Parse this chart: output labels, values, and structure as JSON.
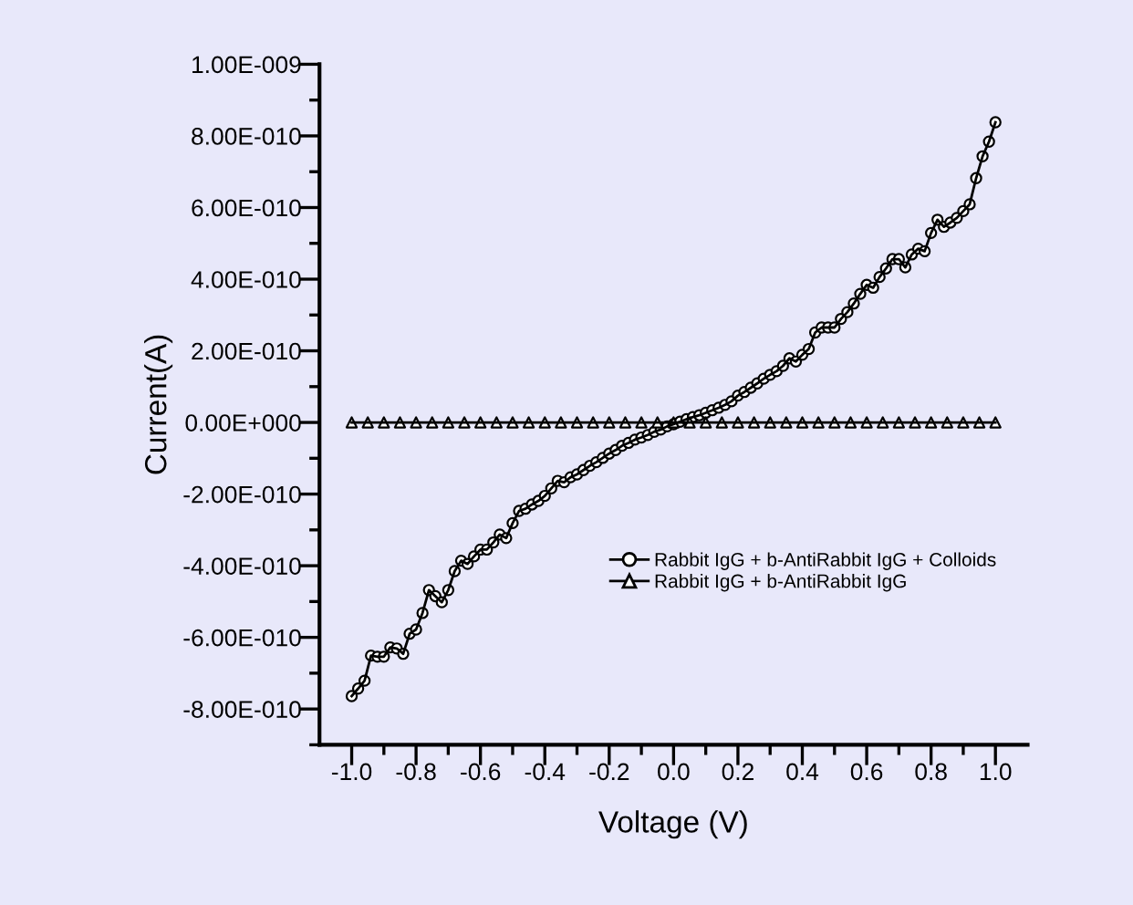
{
  "chart_data": {
    "type": "line",
    "xlabel": "Voltage (V)",
    "ylabel": "Current(A)",
    "xlim": [
      -1.1,
      1.1
    ],
    "xticks": [
      {
        "value": -1.0,
        "label": "-1.0"
      },
      {
        "value": -0.9,
        "label": null
      },
      {
        "value": -0.8,
        "label": "-0.8"
      },
      {
        "value": -0.7,
        "label": null
      },
      {
        "value": -0.6,
        "label": "-0.6"
      },
      {
        "value": -0.5,
        "label": null
      },
      {
        "value": -0.4,
        "label": "-0.4"
      },
      {
        "value": -0.3,
        "label": null
      },
      {
        "value": -0.2,
        "label": "-0.2"
      },
      {
        "value": -0.1,
        "label": null
      },
      {
        "value": 0.0,
        "label": "0.0"
      },
      {
        "value": 0.1,
        "label": null
      },
      {
        "value": 0.2,
        "label": "0.2"
      },
      {
        "value": 0.3,
        "label": null
      },
      {
        "value": 0.4,
        "label": "0.4"
      },
      {
        "value": 0.5,
        "label": null
      },
      {
        "value": 0.6,
        "label": "0.6"
      },
      {
        "value": 0.7,
        "label": null
      },
      {
        "value": 0.8,
        "label": "0.8"
      },
      {
        "value": 0.9,
        "label": null
      },
      {
        "value": 1.0,
        "label": "1.0"
      }
    ],
    "ylim": [
      -9e-10,
      1e-09
    ],
    "yticks": [
      {
        "value": -9e-10,
        "label": null
      },
      {
        "value": -8e-10,
        "label": "-8.00E-010"
      },
      {
        "value": -7e-10,
        "label": null
      },
      {
        "value": -6e-10,
        "label": "-6.00E-010"
      },
      {
        "value": -5e-10,
        "label": null
      },
      {
        "value": -4e-10,
        "label": "-4.00E-010"
      },
      {
        "value": -3e-10,
        "label": null
      },
      {
        "value": -2e-10,
        "label": "-2.00E-010"
      },
      {
        "value": -1e-10,
        "label": null
      },
      {
        "value": 0,
        "label": "0.00E+000"
      },
      {
        "value": 1e-10,
        "label": null
      },
      {
        "value": 2e-10,
        "label": "2.00E-010"
      },
      {
        "value": 3e-10,
        "label": null
      },
      {
        "value": 4e-10,
        "label": "4.00E-010"
      },
      {
        "value": 5e-10,
        "label": null
      },
      {
        "value": 6e-10,
        "label": "6.00E-010"
      },
      {
        "value": 7e-10,
        "label": null
      },
      {
        "value": 8e-10,
        "label": "8.00E-010"
      },
      {
        "value": 9e-10,
        "label": null
      },
      {
        "value": 1e-09,
        "label": "1.00E-009"
      }
    ],
    "grid": false,
    "legend": "bottom right",
    "series": [
      {
        "name": "Rabbit IgG + b-AntiRabbit IgG + Colloids",
        "color": "#000000",
        "marker": "circle",
        "x": [
          -1.0,
          -0.98,
          -0.96,
          -0.94,
          -0.92,
          -0.9,
          -0.88,
          -0.86,
          -0.84,
          -0.82,
          -0.8,
          -0.78,
          -0.76,
          -0.74,
          -0.72,
          -0.7,
          -0.68,
          -0.66,
          -0.64,
          -0.62,
          -0.6,
          -0.58,
          -0.56,
          -0.54,
          -0.52,
          -0.5,
          -0.48,
          -0.46,
          -0.44,
          -0.42,
          -0.4,
          -0.38,
          -0.36,
          -0.34,
          -0.32,
          -0.3,
          -0.28,
          -0.26,
          -0.24,
          -0.22,
          -0.2,
          -0.18,
          -0.16,
          -0.14,
          -0.12,
          -0.1,
          -0.08,
          -0.06,
          -0.04,
          -0.02,
          0.0,
          0.02,
          0.04,
          0.06,
          0.08,
          0.1,
          0.12,
          0.14,
          0.16,
          0.18,
          0.2,
          0.22,
          0.24,
          0.26,
          0.28,
          0.3,
          0.32,
          0.34,
          0.36,
          0.38,
          0.4,
          0.42,
          0.44,
          0.46,
          0.48,
          0.5,
          0.52,
          0.54,
          0.56,
          0.58,
          0.6,
          0.62,
          0.64,
          0.66,
          0.68,
          0.7,
          0.72,
          0.74,
          0.76,
          0.78,
          0.8,
          0.82,
          0.84,
          0.86,
          0.88,
          0.9,
          0.92,
          0.94,
          0.96,
          0.98,
          1.0
        ],
        "values": [
          -7.64e-10,
          -7.43e-10,
          -7.21e-10,
          -6.51e-10,
          -6.54e-10,
          -6.54e-10,
          -6.28e-10,
          -6.31e-10,
          -6.46e-10,
          -5.9e-10,
          -5.78e-10,
          -5.32e-10,
          -4.68e-10,
          -4.85e-10,
          -5.02e-10,
          -4.68e-10,
          -4.15e-10,
          -3.86e-10,
          -3.95e-10,
          -3.74e-10,
          -3.55e-10,
          -3.55e-10,
          -3.35e-10,
          -3.13e-10,
          -3.23e-10,
          -2.81e-10,
          -2.47e-10,
          -2.41e-10,
          -2.29e-10,
          -2.19e-10,
          -2.05e-10,
          -1.84e-10,
          -1.63e-10,
          -1.67e-10,
          -1.53e-10,
          -1.45e-10,
          -1.33e-10,
          -1.21e-10,
          -1.11e-10,
          -9.9e-11,
          -8.7e-11,
          -7.7e-11,
          -6.5e-11,
          -5.7e-11,
          -4.8e-11,
          -4.2e-11,
          -3.5e-11,
          -2.6e-11,
          -2e-11,
          -1.1e-11,
          -5e-12,
          2e-12,
          9e-12,
          1.5e-11,
          2e-11,
          2.7e-11,
          3.4e-11,
          4.1e-11,
          4.9e-11,
          5.9e-11,
          7.5e-11,
          8.5e-11,
          9.7e-11,
          1.09e-10,
          1.22e-10,
          1.33e-10,
          1.43e-10,
          1.58e-10,
          1.79e-10,
          1.7e-10,
          1.89e-10,
          2.05e-10,
          2.51e-10,
          2.65e-10,
          2.65e-10,
          2.65e-10,
          2.89e-10,
          3.08e-10,
          3.32e-10,
          3.59e-10,
          3.84e-10,
          3.76e-10,
          4.06e-10,
          4.3e-10,
          4.56e-10,
          4.56e-10,
          4.33e-10,
          4.69e-10,
          4.85e-10,
          4.78e-10,
          5.29e-10,
          5.66e-10,
          5.46e-10,
          5.58e-10,
          5.71e-10,
          5.9e-10,
          6.09e-10,
          6.82e-10,
          7.43e-10,
          7.84e-10,
          8.38e-10
        ]
      },
      {
        "name": "Rabbit IgG + b-AntiRabbit IgG",
        "color": "#000000",
        "marker": "triangle",
        "x": [
          -1.0,
          -0.95,
          -0.9,
          -0.85,
          -0.8,
          -0.75,
          -0.7,
          -0.65,
          -0.6,
          -0.55,
          -0.5,
          -0.45,
          -0.4,
          -0.35,
          -0.3,
          -0.25,
          -0.2,
          -0.15,
          -0.1,
          -0.05,
          0.0,
          0.05,
          0.1,
          0.15,
          0.2,
          0.25,
          0.3,
          0.35,
          0.4,
          0.45,
          0.5,
          0.55,
          0.6,
          0.65,
          0.7,
          0.75,
          0.8,
          0.85,
          0.9,
          0.95,
          1.0
        ],
        "values": [
          0,
          0,
          0,
          0,
          0,
          0,
          0,
          0,
          0,
          0,
          0,
          0,
          0,
          0,
          0,
          0,
          0,
          0,
          0,
          0,
          0,
          0,
          0,
          0,
          0,
          0,
          0,
          0,
          0,
          0,
          0,
          0,
          0,
          0,
          0,
          0,
          0,
          0,
          0,
          0,
          0
        ]
      }
    ]
  }
}
